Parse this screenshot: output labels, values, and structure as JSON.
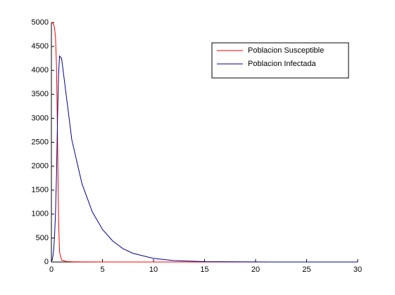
{
  "chart_data": {
    "type": "line",
    "x": [
      0,
      0.1,
      0.2,
      0.3,
      0.4,
      0.5,
      0.6,
      0.7,
      0.8,
      1,
      1.5,
      2,
      3,
      4,
      5,
      6,
      7,
      8,
      10,
      12,
      15,
      20,
      25,
      30
    ],
    "series": [
      {
        "name": "Poblacion Susceptible",
        "color": "#ff0000",
        "values": [
          5000,
          4995,
          4970,
          4900,
          4700,
          4100,
          2600,
          900,
          200,
          40,
          10,
          5,
          2,
          1,
          0,
          0,
          0,
          0,
          0,
          0,
          0,
          0,
          0,
          0
        ]
      },
      {
        "name": "Poblacion Infectada",
        "color": "#00008b",
        "values": [
          0,
          60,
          200,
          500,
          1000,
          1800,
          3000,
          3900,
          4300,
          4250,
          3400,
          2550,
          1630,
          1050,
          680,
          440,
          280,
          180,
          75,
          30,
          8,
          1,
          0,
          0
        ]
      }
    ],
    "xlim": [
      0,
      30
    ],
    "xticks": [
      0,
      5,
      10,
      15,
      20,
      25,
      30
    ],
    "ylim": [
      0,
      5000
    ],
    "yticks": [
      0,
      500,
      1000,
      1500,
      2000,
      2500,
      3000,
      3500,
      4000,
      4500,
      5000
    ],
    "legend": "upper-right"
  }
}
